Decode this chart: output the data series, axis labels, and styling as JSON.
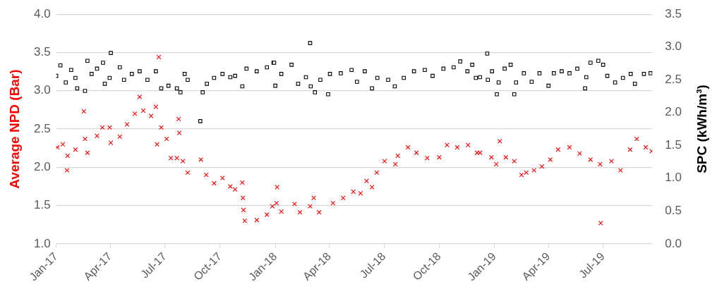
{
  "chart_data": {
    "type": "scatter",
    "ylabel": "Average NPD (Bar)",
    "y2label": "SPC (kWh/m³)",
    "xlim": [
      "2017-01-01",
      "2019-09-21"
    ],
    "xticks": [
      {
        "value": "2017-01-01",
        "label": "Jan-17"
      },
      {
        "value": "2017-04-01",
        "label": "Apr-17"
      },
      {
        "value": "2017-07-01",
        "label": "Jul-17"
      },
      {
        "value": "2017-10-01",
        "label": "Oct-17"
      },
      {
        "value": "2018-01-01",
        "label": "Jan-18"
      },
      {
        "value": "2018-04-01",
        "label": "Apr-18"
      },
      {
        "value": "2018-07-01",
        "label": "Jul-18"
      },
      {
        "value": "2018-10-01",
        "label": "Oct-18"
      },
      {
        "value": "2019-01-01",
        "label": "Jan-19"
      },
      {
        "value": "2019-04-01",
        "label": "Apr-19"
      },
      {
        "value": "2019-07-01",
        "label": "Jul-19"
      }
    ],
    "ylim": [
      1,
      4
    ],
    "yticks": [
      {
        "value": 1,
        "label": "1.0"
      },
      {
        "value": 1.5,
        "label": "1.5"
      },
      {
        "value": 2,
        "label": "2.0"
      },
      {
        "value": 2.5,
        "label": "2.5"
      },
      {
        "value": 3,
        "label": "3.0"
      },
      {
        "value": 3.5,
        "label": "3.5"
      },
      {
        "value": 4,
        "label": "4.0"
      }
    ],
    "y2lim": [
      0,
      3.5
    ],
    "y2ticks": [
      {
        "value": 0,
        "label": "0.0"
      },
      {
        "value": 0.5,
        "label": "0.5"
      },
      {
        "value": 1,
        "label": "1.0"
      },
      {
        "value": 1.5,
        "label": "1.5"
      },
      {
        "value": 2,
        "label": "2.0"
      },
      {
        "value": 2.5,
        "label": "2.5"
      },
      {
        "value": 3,
        "label": "3.0"
      },
      {
        "value": 3.5,
        "label": "3.5"
      }
    ],
    "grid": "y",
    "legend": false,
    "series": [
      {
        "color": "#ff0000",
        "marker": "cross",
        "x": [
          "2017-01-03",
          "2017-01-12",
          "2017-01-19",
          "2017-01-20",
          "2017-02-02",
          "2017-02-16",
          "2017-02-18",
          "2017-02-22",
          "2017-03-10",
          "2017-03-19",
          "2017-03-31",
          "2017-04-02",
          "2017-04-17",
          "2017-04-29",
          "2017-05-12",
          "2017-05-20",
          "2017-05-26",
          "2017-06-08",
          "2017-06-16",
          "2017-06-18",
          "2017-06-21",
          "2017-06-25",
          "2017-07-04",
          "2017-07-11",
          "2017-07-21",
          "2017-07-24",
          "2017-07-25",
          "2017-07-31",
          "2017-08-08",
          "2017-08-30",
          "2017-09-08",
          "2017-09-21",
          "2017-10-05",
          "2017-10-18",
          "2017-10-26",
          "2017-11-07",
          "2017-11-08",
          "2017-11-09",
          "2017-11-11",
          "2017-12-01",
          "2017-12-18",
          "2017-12-27",
          "2018-01-03",
          "2018-01-04",
          "2018-01-11",
          "2018-02-02",
          "2018-02-11",
          "2018-02-28",
          "2018-03-06",
          "2018-03-15",
          "2018-04-07",
          "2018-04-24",
          "2018-05-11",
          "2018-05-23",
          "2018-06-02",
          "2018-06-11",
          "2018-06-19",
          "2018-07-02",
          "2018-07-20",
          "2018-07-24",
          "2018-08-10",
          "2018-08-24",
          "2018-09-11",
          "2018-10-01",
          "2018-10-14",
          "2018-10-31",
          "2018-11-18",
          "2018-12-03",
          "2018-12-08",
          "2018-12-27",
          "2019-01-04",
          "2019-01-10",
          "2019-01-20",
          "2019-02-03",
          "2019-02-15",
          "2019-02-23",
          "2019-03-08",
          "2019-03-21",
          "2019-04-04",
          "2019-04-17",
          "2019-05-06",
          "2019-05-23",
          "2019-06-10",
          "2019-06-26",
          "2019-06-27",
          "2019-07-15",
          "2019-07-30",
          "2019-08-15",
          "2019-08-26",
          "2019-09-10",
          "2019-09-20"
        ],
        "values": [
          2.26,
          2.3,
          1.96,
          2.15,
          2.23,
          2.73,
          2.37,
          2.19,
          2.41,
          2.52,
          2.52,
          2.32,
          2.4,
          2.56,
          2.7,
          2.92,
          2.74,
          2.67,
          2.79,
          2.3,
          3.44,
          2.52,
          2.37,
          2.12,
          2.12,
          2.63,
          2.45,
          2.08,
          1.93,
          2.1,
          1.9,
          1.79,
          1.86,
          1.75,
          1.71,
          1.8,
          1.6,
          1.44,
          1.3,
          1.31,
          1.38,
          1.49,
          1.53,
          1.74,
          1.42,
          1.52,
          1.41,
          1.49,
          1.6,
          1.41,
          1.53,
          1.6,
          1.68,
          1.66,
          1.82,
          1.74,
          1.93,
          2.08,
          2.04,
          2.15,
          2.26,
          2.19,
          2.12,
          2.13,
          2.29,
          2.26,
          2.29,
          2.19,
          2.19,
          2.13,
          2.04,
          2.34,
          2.13,
          2.08,
          1.9,
          1.93,
          1.96,
          2.01,
          2.1,
          2.23,
          2.26,
          2.18,
          2.1,
          2.04,
          1.27,
          2.08,
          1.96,
          2.23,
          2.37,
          2.26,
          2.21
        ]
      },
      {
        "color": "#000000",
        "marker": "square",
        "axis": "y2",
        "x": [
          "2017-01-01",
          "2017-01-08",
          "2017-01-17",
          "2017-01-26",
          "2017-02-02",
          "2017-02-05",
          "2017-02-18",
          "2017-02-22",
          "2017-03-01",
          "2017-03-10",
          "2017-03-20",
          "2017-03-23",
          "2017-03-31",
          "2017-04-02",
          "2017-04-17",
          "2017-04-24",
          "2017-05-07",
          "2017-05-20",
          "2017-06-02",
          "2017-06-16",
          "2017-06-25",
          "2017-07-07",
          "2017-07-21",
          "2017-07-27",
          "2017-08-03",
          "2017-08-08",
          "2017-08-29",
          "2017-09-02",
          "2017-09-09",
          "2017-09-21",
          "2017-10-05",
          "2017-10-18",
          "2017-10-26",
          "2017-11-07",
          "2017-11-14",
          "2017-12-01",
          "2017-12-18",
          "2017-12-29",
          "2017-12-30",
          "2018-01-01",
          "2018-01-11",
          "2018-01-28",
          "2018-02-08",
          "2018-02-21",
          "2018-02-28",
          "2018-03-01",
          "2018-03-08",
          "2018-03-17",
          "2018-03-30",
          "2018-04-02",
          "2018-04-20",
          "2018-05-08",
          "2018-05-17",
          "2018-05-30",
          "2018-06-11",
          "2018-06-20",
          "2018-07-08",
          "2018-07-19",
          "2018-08-03",
          "2018-08-20",
          "2018-09-07",
          "2018-09-20",
          "2018-10-08",
          "2018-10-25",
          "2018-11-05",
          "2018-11-17",
          "2018-11-25",
          "2018-12-01",
          "2018-12-08",
          "2018-12-20",
          "2018-12-21",
          "2018-12-28",
          "2019-01-05",
          "2019-01-08",
          "2019-01-18",
          "2019-01-28",
          "2019-02-03",
          "2019-02-06",
          "2019-02-19",
          "2019-03-04",
          "2019-03-17",
          "2019-04-01",
          "2019-04-10",
          "2019-04-23",
          "2019-05-06",
          "2019-05-19",
          "2019-06-01",
          "2019-06-03",
          "2019-06-10",
          "2019-06-23",
          "2019-07-01",
          "2019-07-08",
          "2019-07-21",
          "2019-08-03",
          "2019-08-16",
          "2019-08-23",
          "2019-09-07",
          "2019-09-18"
        ],
        "values": [
          2.56,
          2.72,
          2.46,
          2.65,
          2.53,
          2.37,
          2.33,
          2.79,
          2.59,
          2.67,
          2.76,
          2.44,
          2.53,
          2.91,
          2.69,
          2.5,
          2.59,
          2.63,
          2.5,
          2.63,
          2.37,
          2.41,
          2.37,
          2.31,
          2.59,
          2.5,
          1.87,
          2.31,
          2.44,
          2.53,
          2.59,
          2.54,
          2.56,
          2.4,
          2.67,
          2.63,
          2.69,
          2.76,
          2.76,
          2.41,
          2.59,
          2.73,
          2.44,
          2.54,
          3.06,
          2.4,
          2.31,
          2.5,
          2.28,
          2.59,
          2.6,
          2.65,
          2.47,
          2.63,
          2.37,
          2.53,
          2.5,
          2.4,
          2.53,
          2.63,
          2.65,
          2.56,
          2.67,
          2.69,
          2.78,
          2.63,
          2.73,
          2.53,
          2.54,
          2.9,
          2.5,
          2.63,
          2.28,
          2.46,
          2.67,
          2.73,
          2.28,
          2.46,
          2.6,
          2.47,
          2.6,
          2.41,
          2.6,
          2.63,
          2.6,
          2.67,
          2.37,
          2.54,
          2.76,
          2.79,
          2.73,
          2.56,
          2.46,
          2.53,
          2.59,
          2.44,
          2.59,
          2.6
        ]
      }
    ]
  }
}
